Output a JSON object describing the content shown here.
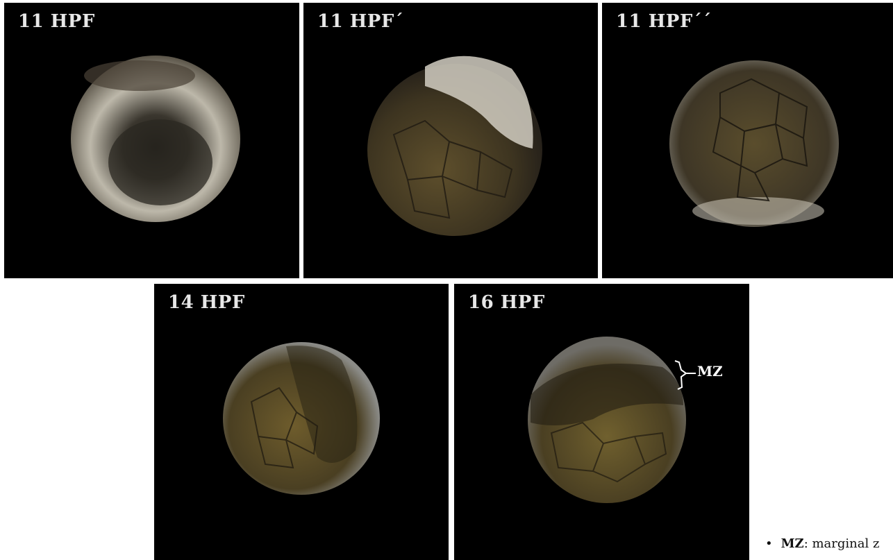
{
  "panels": [
    {
      "label": "11 HPF"
    },
    {
      "label": "11 HPF´"
    },
    {
      "label": "11 HPF´´"
    },
    {
      "label": "14 HPF"
    },
    {
      "label": "16 HPF",
      "annotation": "MZ"
    }
  ],
  "legend": {
    "bullet": "•",
    "term": "MZ",
    "definition": ": marginal z"
  },
  "colors": {
    "panel_background": "#000000",
    "label_text": "#e8e8e8",
    "embryo_yolk": "#6b5a2e",
    "embryo_cap": "#cfcabc"
  }
}
